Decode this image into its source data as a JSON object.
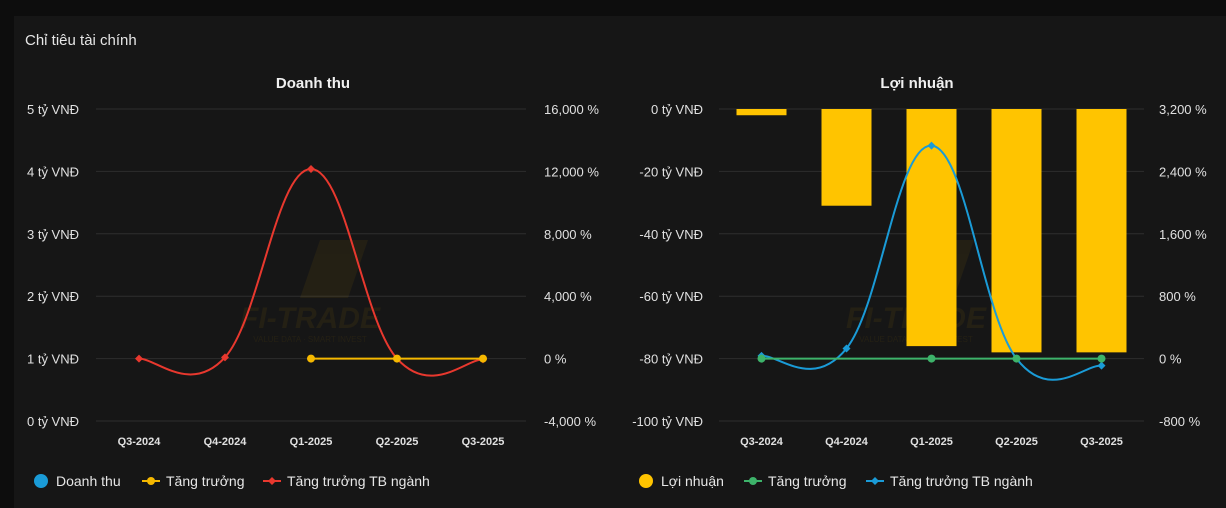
{
  "section_title": "Chỉ tiêu tài chính",
  "watermark": {
    "text": "FI-TRADE",
    "tagline": "VALUE DATA · SMART INVEST"
  },
  "chart_data": [
    {
      "type": "bar",
      "title": "Doanh thu",
      "categories": [
        "Q3-2024",
        "Q4-2024",
        "Q1-2025",
        "Q2-2025",
        "Q3-2025"
      ],
      "left_axis": {
        "ticks": [
          "5 tỷ VNĐ",
          "4 tỷ VNĐ",
          "3 tỷ VNĐ",
          "2 tỷ VNĐ",
          "1 tỷ VNĐ",
          "0 tỷ VNĐ"
        ],
        "ylim": [
          0,
          5
        ]
      },
      "right_axis": {
        "ticks": [
          "16,000 %",
          "12,000 %",
          "8,000 %",
          "4,000 %",
          "0 %",
          "-4,000 %"
        ],
        "ylim": [
          -4000,
          16000
        ]
      },
      "bar_series": {
        "name": "Doanh thu",
        "values": [
          0,
          0,
          0,
          0,
          0
        ],
        "color": "#1a9bd7"
      },
      "line_series": [
        {
          "name": "Tăng trưởng",
          "values": [
            null,
            null,
            0,
            0,
            0
          ],
          "color": "#f5b800"
        },
        {
          "name": "Tăng trưởng TB ngành",
          "values": [
            0,
            80,
            12150,
            0,
            -50
          ],
          "color": "#e8382e"
        }
      ],
      "legend": [
        "Doanh thu",
        "Tăng trưởng",
        "Tăng trưởng TB ngành"
      ]
    },
    {
      "type": "bar",
      "title": "Lợi nhuận",
      "categories": [
        "Q3-2024",
        "Q4-2024",
        "Q1-2025",
        "Q2-2025",
        "Q3-2025"
      ],
      "left_axis": {
        "ticks": [
          "0 tỷ VNĐ",
          "-20 tỷ VNĐ",
          "-40 tỷ VNĐ",
          "-60 tỷ VNĐ",
          "-80 tỷ VNĐ",
          "-100 tỷ VNĐ"
        ],
        "ylim": [
          -100,
          0
        ]
      },
      "right_axis": {
        "ticks": [
          "3,200 %",
          "2,400 %",
          "1,600 %",
          "800 %",
          "0 %",
          "-800 %"
        ],
        "ylim": [
          -800,
          3200
        ]
      },
      "bar_series": {
        "name": "Lợi nhuận",
        "values": [
          -2,
          -31,
          -76,
          -78,
          -78
        ],
        "color": "#ffc400"
      },
      "line_series": [
        {
          "name": "Tăng trưởng",
          "values": [
            0,
            null,
            0,
            0,
            0
          ],
          "color": "#3db36a"
        },
        {
          "name": "Tăng trưởng TB ngành",
          "values": [
            35,
            130,
            2730,
            0,
            -90
          ],
          "color": "#1a9bd7"
        }
      ],
      "legend": [
        "Lợi nhuận",
        "Tăng trưởng",
        "Tăng trưởng TB ngành"
      ]
    }
  ]
}
